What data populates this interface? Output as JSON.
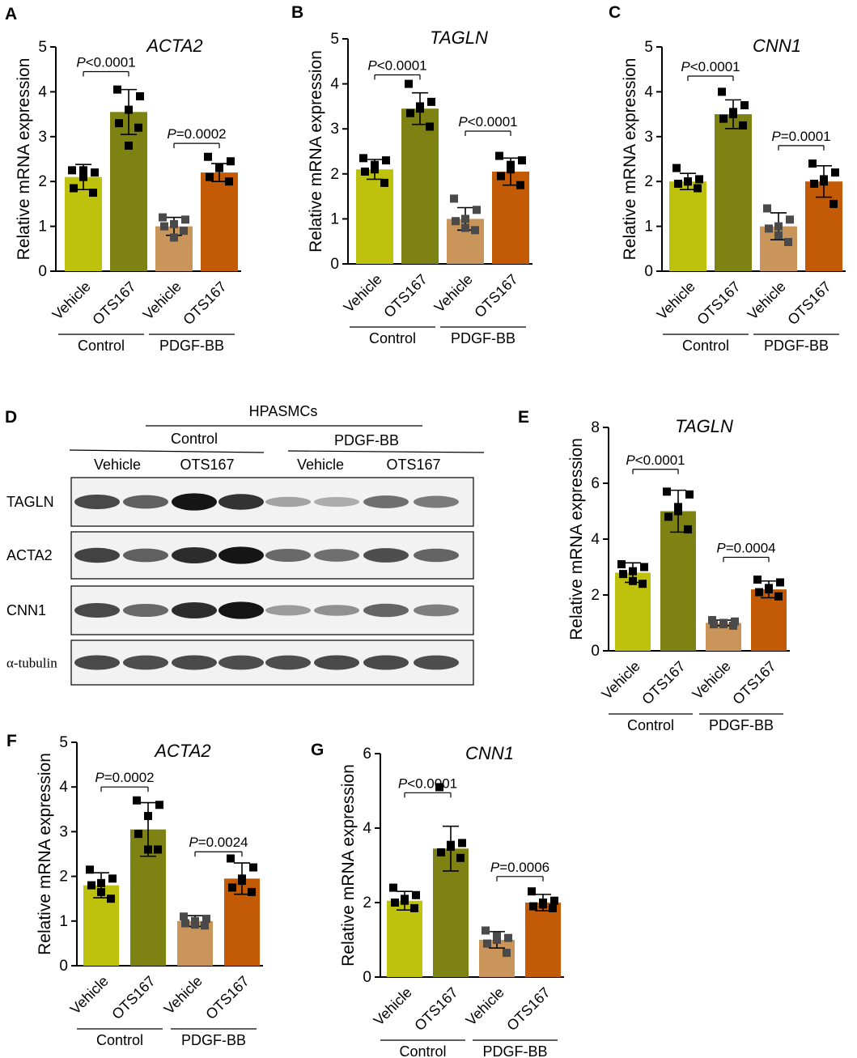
{
  "figure": {
    "group_labels": [
      "Control",
      "PDGF-BB"
    ],
    "colors": {
      "Control Vehicle": "#bec20c",
      "Control OTS167": "#7e8212",
      "PDGF-BB Vehicle": "#c9955a",
      "PDGF-BB OTS167": "#c25a06"
    },
    "blot": {
      "letter": "D",
      "header": "HPASMCs",
      "groups": [
        "Control",
        "PDGF-BB"
      ],
      "lanes": [
        "Vehicle",
        "OTS167",
        "Vehicle",
        "OTS167"
      ],
      "rows": [
        "TAGLN",
        "ACTA2",
        "CNN1",
        "α-tubulin"
      ],
      "band_intensity": [
        [
          0.72,
          0.62,
          0.95,
          0.82,
          0.32,
          0.28,
          0.55,
          0.5
        ],
        [
          0.75,
          0.62,
          0.85,
          0.95,
          0.58,
          0.55,
          0.7,
          0.6
        ],
        [
          0.72,
          0.58,
          0.85,
          0.95,
          0.35,
          0.4,
          0.6,
          0.48
        ],
        [
          0.72,
          0.7,
          0.72,
          0.7,
          0.7,
          0.72,
          0.72,
          0.7
        ]
      ]
    }
  },
  "chart_data": [
    {
      "panel": "A",
      "type": "bar",
      "title": "ACTA2",
      "ylabel": "Relative mRNA expression",
      "ylim": [
        0,
        5
      ],
      "yticks": [
        "0",
        "1",
        "2",
        "3",
        "4",
        "5"
      ],
      "categories": [
        "Vehicle",
        "OTS167",
        "Vehicle",
        "OTS167"
      ],
      "groups": [
        "Control",
        "PDGF-BB"
      ],
      "values": [
        2.1,
        3.55,
        1.0,
        2.2
      ],
      "errors": [
        0.28,
        0.5,
        0.2,
        0.2
      ],
      "points": [
        [
          2.25,
          2.2,
          2.1,
          1.85,
          1.75,
          2.25
        ],
        [
          4.05,
          3.9,
          3.6,
          3.3,
          3.2,
          2.8
        ],
        [
          1.2,
          1.15,
          1.05,
          1.0,
          0.9,
          0.75
        ],
        [
          2.55,
          2.45,
          2.3,
          2.1,
          2.0,
          2.3
        ]
      ],
      "comparisons": [
        {
          "between": [
            0,
            1
          ],
          "label": "P<0.0001",
          "y": 4.45
        },
        {
          "between": [
            2,
            3
          ],
          "label": "P=0.0002",
          "y": 2.85
        }
      ]
    },
    {
      "panel": "B",
      "type": "bar",
      "title": "TAGLN",
      "ylabel": "Relative mRNA expression",
      "ylim": [
        0,
        5
      ],
      "yticks": [
        "0",
        "1",
        "2",
        "3",
        "4",
        "5"
      ],
      "categories": [
        "Vehicle",
        "OTS167",
        "Vehicle",
        "OTS167"
      ],
      "groups": [
        "Control",
        "PDGF-BB"
      ],
      "values": [
        2.1,
        3.45,
        1.0,
        2.05
      ],
      "errors": [
        0.22,
        0.35,
        0.25,
        0.3
      ],
      "points": [
        [
          2.35,
          2.3,
          2.1,
          2.05,
          1.8,
          2.2
        ],
        [
          4.0,
          3.6,
          3.45,
          3.35,
          3.05,
          3.5
        ],
        [
          1.45,
          1.2,
          1.0,
          0.95,
          0.75,
          0.8
        ],
        [
          2.4,
          2.3,
          2.1,
          1.95,
          1.75,
          2.2
        ]
      ],
      "comparisons": [
        {
          "between": [
            0,
            1
          ],
          "label": "P<0.0001",
          "y": 4.2
        },
        {
          "between": [
            2,
            3
          ],
          "label": "P<0.0001",
          "y": 2.95
        }
      ]
    },
    {
      "panel": "C",
      "type": "bar",
      "title": "CNN1",
      "ylabel": "Relative mRNA expression",
      "ylim": [
        0,
        5
      ],
      "yticks": [
        "0",
        "1",
        "2",
        "3",
        "4",
        "5"
      ],
      "categories": [
        "Vehicle",
        "OTS167",
        "Vehicle",
        "OTS167"
      ],
      "groups": [
        "Control",
        "PDGF-BB"
      ],
      "values": [
        2.0,
        3.5,
        1.0,
        2.0
      ],
      "errors": [
        0.18,
        0.32,
        0.3,
        0.35
      ],
      "points": [
        [
          2.3,
          2.05,
          2.0,
          1.95,
          1.85,
          2.0
        ],
        [
          4.0,
          3.7,
          3.5,
          3.4,
          3.25,
          3.55
        ],
        [
          1.4,
          1.15,
          1.0,
          0.95,
          0.65,
          0.8
        ],
        [
          2.4,
          2.2,
          2.0,
          1.95,
          1.5,
          2.05
        ]
      ],
      "comparisons": [
        {
          "between": [
            0,
            1
          ],
          "label": "P<0.0001",
          "y": 4.35
        },
        {
          "between": [
            2,
            3
          ],
          "label": "P=0.0001",
          "y": 2.8
        }
      ]
    },
    {
      "panel": "E",
      "type": "bar",
      "title": "TAGLN",
      "ylabel": "Relative mRNA expression",
      "ylim": [
        0,
        8
      ],
      "yticks": [
        "0",
        "2",
        "4",
        "6",
        "8"
      ],
      "categories": [
        "Vehicle",
        "OTS167",
        "Vehicle",
        "OTS167"
      ],
      "groups": [
        "Control",
        "PDGF-BB"
      ],
      "values": [
        2.8,
        5.0,
        1.0,
        2.2
      ],
      "errors": [
        0.35,
        0.75,
        0.1,
        0.3
      ],
      "points": [
        [
          3.1,
          3.0,
          2.85,
          2.75,
          2.4,
          2.5
        ],
        [
          5.7,
          5.6,
          5.15,
          4.8,
          4.35,
          5.0
        ],
        [
          1.1,
          1.05,
          1.0,
          0.95,
          0.9,
          0.95
        ],
        [
          2.55,
          2.45,
          2.2,
          2.1,
          1.95,
          2.25
        ]
      ],
      "comparisons": [
        {
          "between": [
            0,
            1
          ],
          "label": "P<0.0001",
          "y": 6.5
        },
        {
          "between": [
            2,
            3
          ],
          "label": "P=0.0004",
          "y": 3.35
        }
      ]
    },
    {
      "panel": "F",
      "type": "bar",
      "title": "ACTA2",
      "ylabel": "Relative mRNA expression",
      "ylim": [
        0,
        5
      ],
      "yticks": [
        "0",
        "1",
        "2",
        "3",
        "4",
        "5"
      ],
      "categories": [
        "Vehicle",
        "OTS167",
        "Vehicle",
        "OTS167"
      ],
      "groups": [
        "Control",
        "PDGF-BB"
      ],
      "values": [
        1.8,
        3.05,
        1.0,
        1.95
      ],
      "errors": [
        0.28,
        0.6,
        0.12,
        0.35
      ],
      "points": [
        [
          2.15,
          1.95,
          1.85,
          1.8,
          1.5,
          1.65
        ],
        [
          3.7,
          3.6,
          3.35,
          2.95,
          2.6,
          2.6
        ],
        [
          1.1,
          1.05,
          1.0,
          0.95,
          0.9,
          0.92
        ],
        [
          2.4,
          2.2,
          1.95,
          1.75,
          1.65,
          1.9
        ]
      ],
      "comparisons": [
        {
          "between": [
            0,
            1
          ],
          "label": "P=0.0002",
          "y": 4.0
        },
        {
          "between": [
            2,
            3
          ],
          "label": "P=0.0024",
          "y": 2.55
        }
      ]
    },
    {
      "panel": "G",
      "type": "bar",
      "title": "CNN1",
      "ylabel": "Relative mRNA expression",
      "ylim": [
        0,
        6
      ],
      "yticks": [
        "0",
        "2",
        "4",
        "6"
      ],
      "categories": [
        "Vehicle",
        "OTS167",
        "Vehicle",
        "OTS167"
      ],
      "groups": [
        "Control",
        "PDGF-BB"
      ],
      "values": [
        2.05,
        3.45,
        1.0,
        2.0
      ],
      "errors": [
        0.25,
        0.6,
        0.22,
        0.22
      ],
      "points": [
        [
          2.4,
          2.2,
          2.1,
          2.0,
          1.85,
          2.05
        ],
        [
          5.1,
          3.6,
          3.5,
          3.35,
          3.2,
          3.55
        ],
        [
          1.25,
          1.05,
          1.0,
          0.9,
          0.65,
          1.1
        ],
        [
          2.3,
          2.05,
          1.95,
          1.9,
          1.85,
          2.0
        ]
      ],
      "comparisons": [
        {
          "between": [
            0,
            1
          ],
          "label": "P<0.0001",
          "y": 4.95
        },
        {
          "between": [
            2,
            3
          ],
          "label": "P=0.0006",
          "y": 2.7
        }
      ]
    }
  ]
}
